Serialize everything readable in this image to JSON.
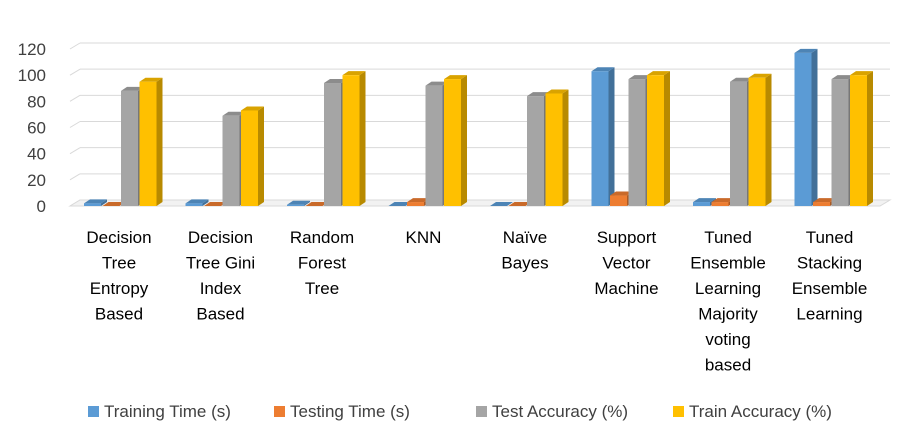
{
  "chart_data": {
    "type": "bar",
    "title": "",
    "xlabel": "",
    "ylabel": "",
    "ylim": [
      0,
      120
    ],
    "yticks": [
      0,
      20,
      40,
      60,
      80,
      100,
      120
    ],
    "grid": true,
    "legend_position": "bottom",
    "categories": [
      [
        "Decision",
        "Tree",
        "Entropy",
        "Based"
      ],
      [
        "Decision",
        "Tree Gini",
        "Index",
        "Based"
      ],
      [
        "Random",
        "Forest",
        "Tree"
      ],
      [
        "KNN"
      ],
      [
        "Naïve",
        "Bayes"
      ],
      [
        "Support",
        "Vector",
        "Machine"
      ],
      [
        "Tuned",
        "Ensemble",
        "Learning",
        "Majority",
        "voting",
        "based"
      ],
      [
        "Tuned",
        "Stacking",
        "Ensemble",
        "Learning"
      ]
    ],
    "series": [
      {
        "name": "Training Time (s)",
        "color": "#5B9BD5",
        "values": [
          2,
          2,
          1,
          0,
          0,
          103,
          3,
          117
        ]
      },
      {
        "name": "Testing Time (s)",
        "color": "#ED7D31",
        "values": [
          0,
          0,
          0,
          3,
          0,
          8,
          3,
          3
        ]
      },
      {
        "name": "Test Accuracy (%)",
        "color": "#A5A5A5",
        "values": [
          88,
          69,
          94,
          92,
          84,
          97,
          95,
          97
        ]
      },
      {
        "name": "Train Accuracy (%)",
        "color": "#FFC000",
        "values": [
          95,
          73,
          100,
          97,
          86,
          100,
          98,
          100
        ]
      }
    ]
  }
}
